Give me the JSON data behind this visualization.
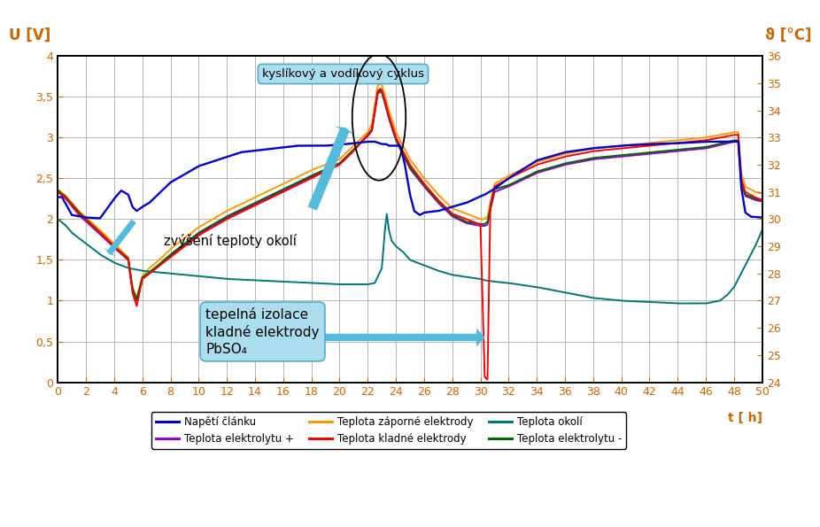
{
  "title_left": "U [V]",
  "title_right": "ϑ [°C]",
  "xlabel": "t [ h]",
  "xlim": [
    0,
    50
  ],
  "ylim_left": [
    0,
    4
  ],
  "ylim_right": [
    24,
    36
  ],
  "xticks": [
    0,
    2,
    4,
    6,
    8,
    10,
    12,
    14,
    16,
    18,
    20,
    22,
    24,
    26,
    28,
    30,
    32,
    34,
    36,
    38,
    40,
    42,
    44,
    46,
    48,
    50
  ],
  "yticks_left": [
    0,
    0.5,
    1,
    1.5,
    2,
    2.5,
    3,
    3.5,
    4
  ],
  "yticks_right": [
    24,
    25,
    26,
    27,
    28,
    29,
    30,
    31,
    32,
    33,
    34,
    35,
    36
  ],
  "legend_row1": [
    {
      "label": "Napětí článku",
      "color": "#0000cc"
    },
    {
      "label": "Teplota elektrolytu +",
      "color": "#9900cc"
    },
    {
      "label": "Teplota záporné elektrody",
      "color": "#ff9900"
    }
  ],
  "legend_row2": [
    {
      "label": "Teplota kladné elektrody",
      "color": "#ff0000"
    },
    {
      "label": "Teplota okolí",
      "color": "#007777"
    },
    {
      "label": "Teplota elektrolytu -",
      "color": "#006600"
    }
  ],
  "annotation1": "kyslíkový a vodíkový cyklus",
  "annotation2": "zvýšení teploty okolí",
  "annotation3": "tepelná izolace\nkladné elektrody\nPbSO₄",
  "background_color": "#ffffff",
  "grid_color": "#aaaaaa",
  "tick_color": "#cc6600",
  "label_color": "#cc6600",
  "cyan_arrow": "#55bbdd"
}
